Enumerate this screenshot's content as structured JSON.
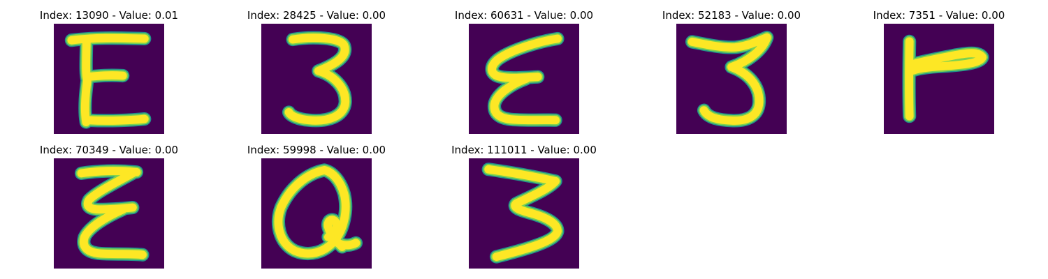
{
  "colors": {
    "background": "#440154",
    "stroke_core": "#fde725",
    "stroke_mid": "#7ad151",
    "stroke_edge": "#21918c"
  },
  "panels": [
    {
      "title": "Index: 13090 - Value: 0.01",
      "glyph": "letter-e-like"
    },
    {
      "title": "Index: 28425 - Value: 0.00",
      "glyph": "digit-3-like"
    },
    {
      "title": "Index: 60631 - Value: 0.00",
      "glyph": "slanted-e-like"
    },
    {
      "title": "Index: 52183 - Value: 0.00",
      "glyph": "digit-3-like"
    },
    {
      "title": "Index: 7351 - Value: 0.00",
      "glyph": "letter-r-like"
    },
    {
      "title": "Index: 70349 - Value: 0.00",
      "glyph": "letter-e-like"
    },
    {
      "title": "Index: 59998 - Value: 0.00",
      "glyph": "letter-q-like"
    },
    {
      "title": "Index: 111011 - Value: 0.00",
      "glyph": "digit-3-like"
    }
  ]
}
